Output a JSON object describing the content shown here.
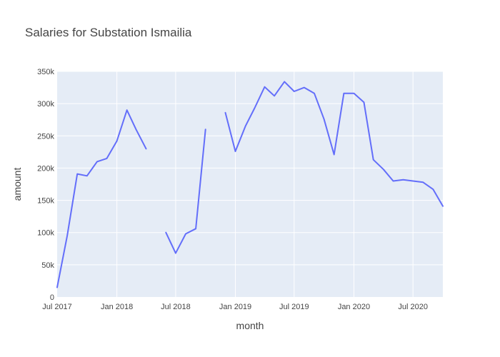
{
  "chart_data": {
    "type": "line",
    "title": "Salaries for Substation Ismailia",
    "xlabel": "month",
    "ylabel": "amount",
    "x_ticks": [
      {
        "date": "2017-07-01",
        "label": "Jul 2017"
      },
      {
        "date": "2018-01-01",
        "label": "Jan 2018"
      },
      {
        "date": "2018-07-01",
        "label": "Jul 2018"
      },
      {
        "date": "2019-01-01",
        "label": "Jan 2019"
      },
      {
        "date": "2019-07-01",
        "label": "Jul 2019"
      },
      {
        "date": "2020-01-01",
        "label": "Jan 2020"
      },
      {
        "date": "2020-07-01",
        "label": "Jul 2020"
      }
    ],
    "y_ticks": [
      {
        "value": 0,
        "label": "0"
      },
      {
        "value": 50000,
        "label": "50k"
      },
      {
        "value": 100000,
        "label": "100k"
      },
      {
        "value": 150000,
        "label": "150k"
      },
      {
        "value": 200000,
        "label": "200k"
      },
      {
        "value": 250000,
        "label": "250k"
      },
      {
        "value": 300000,
        "label": "300k"
      },
      {
        "value": 350000,
        "label": "350k"
      }
    ],
    "xlim": [
      "2017-07-01",
      "2020-10-01"
    ],
    "ylim": [
      0,
      350000
    ],
    "grid": true,
    "colors": {
      "series": "#636efa",
      "plot_bg": "#e5ecf6",
      "grid": "#ffffff"
    },
    "series": [
      {
        "points": [
          {
            "x": "2017-07-01",
            "y": 15000
          },
          {
            "x": "2017-08-01",
            "y": 95000
          },
          {
            "x": "2017-09-01",
            "y": 191000
          },
          {
            "x": "2017-10-01",
            "y": 188000
          },
          {
            "x": "2017-11-01",
            "y": 210000
          },
          {
            "x": "2017-12-01",
            "y": 215000
          },
          {
            "x": "2018-01-01",
            "y": 242000
          },
          {
            "x": "2018-02-01",
            "y": 290000
          },
          {
            "x": "2018-03-01",
            "y": 260000
          },
          {
            "x": "2018-04-01",
            "y": 230000
          },
          {
            "x": "2018-05-01",
            "y": null
          },
          {
            "x": "2018-06-01",
            "y": 100000
          },
          {
            "x": "2018-07-01",
            "y": 68000
          },
          {
            "x": "2018-08-01",
            "y": 98000
          },
          {
            "x": "2018-09-01",
            "y": 106000
          },
          {
            "x": "2018-10-01",
            "y": 260000
          },
          {
            "x": "2018-11-01",
            "y": null
          },
          {
            "x": "2018-12-01",
            "y": 286000
          },
          {
            "x": "2019-01-01",
            "y": 226000
          },
          {
            "x": "2019-02-01",
            "y": 265000
          },
          {
            "x": "2019-03-01",
            "y": 293000
          },
          {
            "x": "2019-04-01",
            "y": 326000
          },
          {
            "x": "2019-05-01",
            "y": 312000
          },
          {
            "x": "2019-06-01",
            "y": 334000
          },
          {
            "x": "2019-07-01",
            "y": 319000
          },
          {
            "x": "2019-08-01",
            "y": 325000
          },
          {
            "x": "2019-09-01",
            "y": 316000
          },
          {
            "x": "2019-10-01",
            "y": 276000
          },
          {
            "x": "2019-11-01",
            "y": 221000
          },
          {
            "x": "2019-12-01",
            "y": 316000
          },
          {
            "x": "2020-01-01",
            "y": 316000
          },
          {
            "x": "2020-02-01",
            "y": 302000
          },
          {
            "x": "2020-03-01",
            "y": 213000
          },
          {
            "x": "2020-04-01",
            "y": 198000
          },
          {
            "x": "2020-05-01",
            "y": 180000
          },
          {
            "x": "2020-06-01",
            "y": 182000
          },
          {
            "x": "2020-07-01",
            "y": 180000
          },
          {
            "x": "2020-08-01",
            "y": 178000
          },
          {
            "x": "2020-09-01",
            "y": 167000
          },
          {
            "x": "2020-10-01",
            "y": 141000
          }
        ]
      }
    ]
  }
}
